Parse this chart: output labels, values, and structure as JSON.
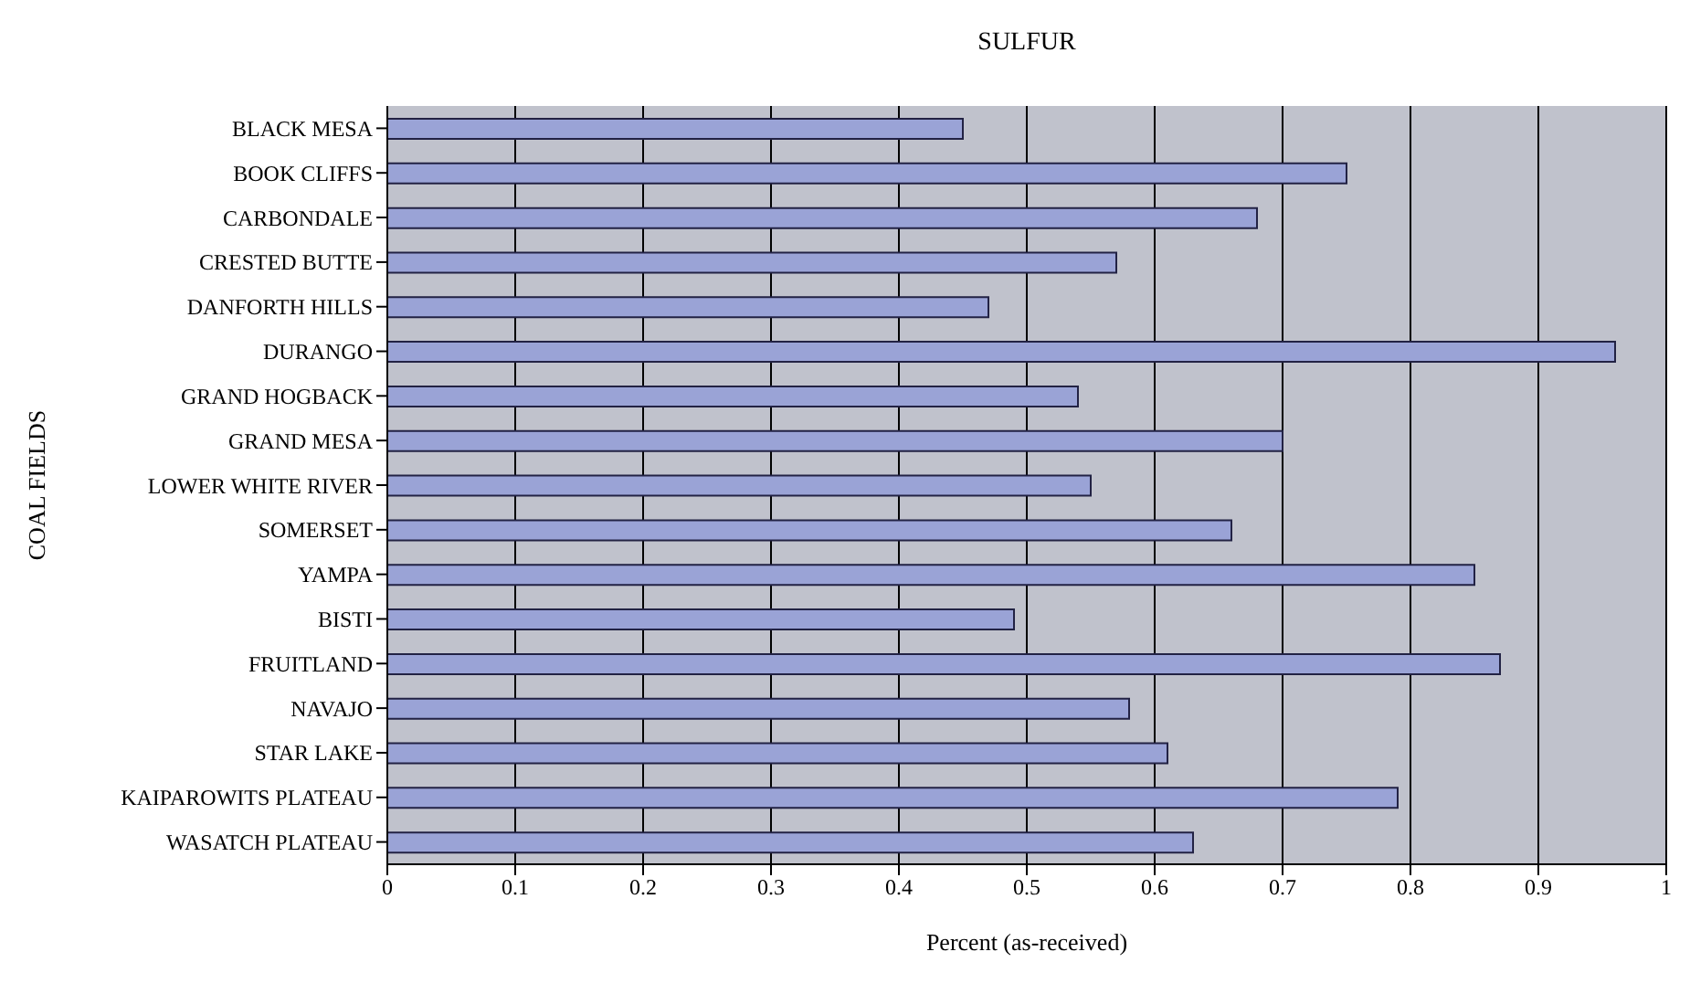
{
  "chart_data": {
    "type": "bar",
    "orientation": "horizontal",
    "title": "SULFUR",
    "xlabel": "Percent (as-received)",
    "ylabel": "COAL FIELDS",
    "categories": [
      "BLACK MESA",
      "BOOK CLIFFS",
      "CARBONDALE",
      "CRESTED BUTTE",
      "DANFORTH HILLS",
      "DURANGO",
      "GRAND HOGBACK",
      "GRAND MESA",
      "LOWER WHITE RIVER",
      "SOMERSET",
      "YAMPA",
      "BISTI",
      "FRUITLAND",
      "NAVAJO",
      "STAR LAKE",
      "KAIPAROWITS PLATEAU",
      "WASATCH PLATEAU"
    ],
    "values": [
      0.45,
      0.75,
      0.68,
      0.57,
      0.47,
      0.96,
      0.54,
      0.7,
      0.55,
      0.66,
      0.85,
      0.49,
      0.87,
      0.58,
      0.61,
      0.79,
      0.63
    ],
    "color": "#9aa3d6",
    "xlim": [
      0,
      1
    ],
    "xticks": [
      0,
      0.1,
      0.2,
      0.3,
      0.4,
      0.5,
      0.6,
      0.7,
      0.8,
      0.9,
      1
    ],
    "grid": "x"
  }
}
